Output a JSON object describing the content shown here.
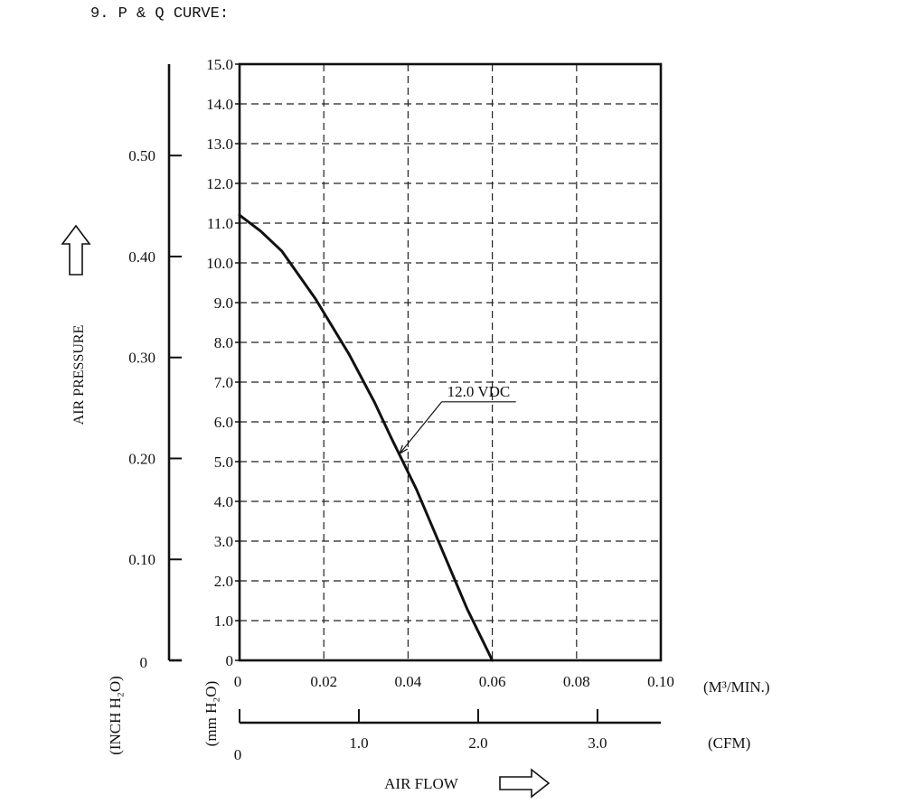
{
  "page": {
    "title": "9. P & Q CURVE:"
  },
  "chart_data": {
    "type": "line",
    "title": "9. P & Q CURVE:",
    "xlabel": "AIR FLOW",
    "ylabel": "AIR PRESSURE",
    "x_unit_primary": "(M³/MIN.)",
    "x_unit_secondary": "(CFM)",
    "y_unit_primary": "(mm H₂O)",
    "y_unit_secondary": "(INCH H₂O)",
    "xlim": [
      0,
      0.1
    ],
    "ylim": [
      0,
      15
    ],
    "x_ticks": [
      0,
      0.02,
      0.04,
      0.06,
      0.08,
      0.1
    ],
    "x_tick_labels": [
      "0",
      "0.02",
      "0.04",
      "0.06",
      "0.08",
      "0.10"
    ],
    "y_ticks": [
      0,
      1,
      2,
      3,
      4,
      5,
      6,
      7,
      8,
      9,
      10,
      11,
      12,
      13,
      14,
      15
    ],
    "y_tick_labels": [
      "0",
      "1.0",
      "2.0",
      "3.0",
      "4.0",
      "5.0",
      "6.0",
      "7.0",
      "8.0",
      "9.0",
      "10.0",
      "11.0",
      "12.0",
      "13.0",
      "14.0",
      "15.0"
    ],
    "y2_ticks": [
      0,
      0.1,
      0.2,
      0.3,
      0.4,
      0.5
    ],
    "y2_tick_labels": [
      "0",
      "0.10",
      "0.20",
      "0.30",
      "0.40",
      "0.50"
    ],
    "y2_scale_mm_per_inch": 25.4,
    "x2_ticks": [
      0,
      1,
      2,
      3
    ],
    "x2_tick_labels": [
      "0",
      "1.0",
      "2.0",
      "3.0"
    ],
    "x2_scale_cfm_per_m3min": 35.31,
    "x2_max": 3.5,
    "grid": true,
    "series": [
      {
        "name": "12.0 VDC",
        "x": [
          0,
          0.005,
          0.01,
          0.018,
          0.026,
          0.032,
          0.036,
          0.042,
          0.048,
          0.054,
          0.06
        ],
        "y": [
          11.2,
          10.8,
          10.3,
          9.1,
          7.7,
          6.5,
          5.6,
          4.3,
          2.8,
          1.3,
          0
        ]
      }
    ],
    "annotations": [
      {
        "text": "12.0 VDC",
        "x": 0.048,
        "y": 6.55,
        "points_to": [
          0.038,
          5.2
        ]
      }
    ],
    "arrow_icons": [
      "up-arrow-icon",
      "right-arrow-icon"
    ]
  }
}
